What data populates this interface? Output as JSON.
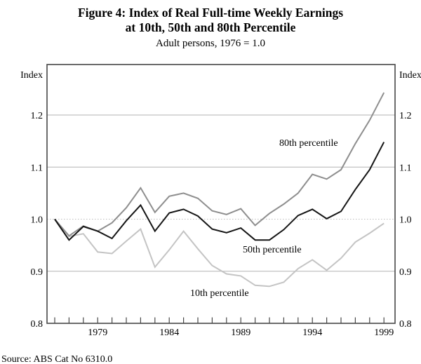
{
  "figure": {
    "title_line1": "Figure 4: Index of Real Full-time Weekly Earnings",
    "title_line2": "at 10th, 50th and 80th Percentile",
    "subtitle": "Adult persons, 1976 = 1.0",
    "axis_unit_left": "Index",
    "axis_unit_right": "Index",
    "source": "Source: ABS Cat No 6310.0"
  },
  "chart_data": {
    "type": "line",
    "title": "Figure 4: Index of Real Full-time Weekly Earnings at 10th, 50th and 80th Percentile",
    "subtitle": "Adult persons, 1976 = 1.0",
    "xlabel": "",
    "ylabel": "Index",
    "x": [
      1976,
      1977,
      1978,
      1979,
      1980,
      1981,
      1982,
      1983,
      1984,
      1985,
      1986,
      1987,
      1988,
      1989,
      1990,
      1991,
      1992,
      1993,
      1994,
      1995,
      1996,
      1997,
      1998,
      1999
    ],
    "xtick_labeled_years": [
      1979,
      1984,
      1989,
      1994,
      1999
    ],
    "yticks": [
      0.8,
      0.9,
      1.0,
      1.1,
      1.2
    ],
    "ytick_labels": [
      "0.8",
      "0.9",
      "1.0",
      "1.1",
      "1.2"
    ],
    "ylim": [
      0.8,
      1.297
    ],
    "xlim": [
      1975.5,
      1999.75
    ],
    "grid": "horizontal gridlines at 0.9, 1.1, 1.2 solid; 1.0 dotted; labels on both sides",
    "legend_position": "inline labels next to lines",
    "series": [
      {
        "name": "10th percentile",
        "color": "#c4c4c4",
        "values": [
          1.0,
          0.967,
          0.972,
          0.937,
          0.934,
          0.958,
          0.981,
          0.908,
          0.941,
          0.977,
          0.943,
          0.911,
          0.895,
          0.891,
          0.873,
          0.871,
          0.879,
          0.905,
          0.922,
          0.902,
          0.925,
          0.956,
          0.973,
          0.992
        ]
      },
      {
        "name": "80th percentile",
        "color": "#8e8e8e",
        "values": [
          1.0,
          0.968,
          0.987,
          0.977,
          0.993,
          1.022,
          1.06,
          1.013,
          1.044,
          1.05,
          1.04,
          1.016,
          1.009,
          1.02,
          0.988,
          1.011,
          1.029,
          1.05,
          1.086,
          1.077,
          1.095,
          1.145,
          1.19,
          1.243
        ]
      },
      {
        "name": "50th percentile",
        "color": "#151515",
        "values": [
          1.0,
          0.96,
          0.986,
          0.977,
          0.963,
          0.997,
          1.027,
          0.977,
          1.012,
          1.019,
          1.006,
          0.981,
          0.974,
          0.983,
          0.96,
          0.96,
          0.98,
          1.007,
          1.019,
          1.001,
          1.015,
          1.057,
          1.095,
          1.148
        ]
      }
    ]
  },
  "colors": {
    "frame": "#474747",
    "gridline": "#b3b3b3",
    "dotted_gridline": "#bdbdbd",
    "series_10th": "#c4c4c4",
    "series_80th": "#8e8e8e",
    "series_50th": "#151515"
  }
}
